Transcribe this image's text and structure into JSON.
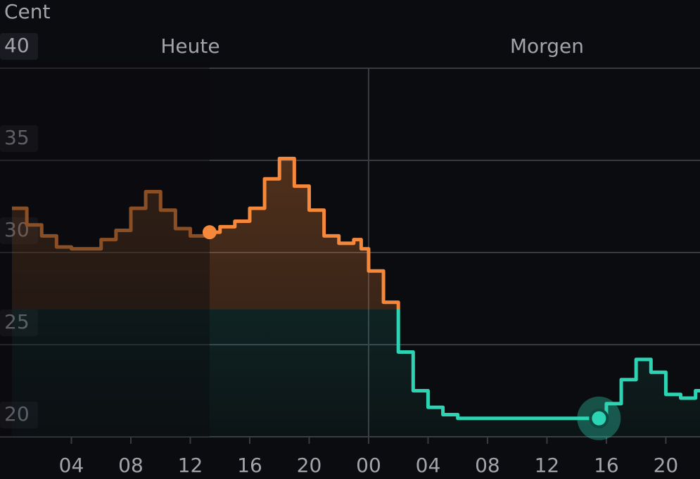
{
  "chart_data": {
    "type": "line",
    "y_label": "Cent",
    "day_labels": [
      "Heute",
      "Morgen"
    ],
    "x": [
      0,
      1,
      2,
      3,
      4,
      5,
      6,
      7,
      8,
      9,
      10,
      11,
      12,
      13,
      14,
      15,
      16,
      17,
      18,
      19,
      20,
      21,
      22,
      23,
      23.5,
      24,
      25,
      26,
      27,
      28,
      29,
      30,
      31,
      32,
      33,
      34,
      35,
      36,
      37,
      38,
      39,
      39.5,
      40,
      41,
      42,
      43,
      44,
      45,
      46
    ],
    "values": [
      32.4,
      31.5,
      30.9,
      30.3,
      30.2,
      30.2,
      30.7,
      31.2,
      32.4,
      33.3,
      32.3,
      31.3,
      30.9,
      31.1,
      31.4,
      31.7,
      32.4,
      34.0,
      35.1,
      33.6,
      32.3,
      30.9,
      30.5,
      30.7,
      30.2,
      29.0,
      27.3,
      24.6,
      22.5,
      21.6,
      21.2,
      21.0,
      21.0,
      21.0,
      21.0,
      21.0,
      21.0,
      21.0,
      21.0,
      21.0,
      21.0,
      21.0,
      21.8,
      23.1,
      24.2,
      23.5,
      22.3,
      22.1,
      22.5
    ],
    "color_high": "#f5883a",
    "color_low": "#2dd4b4",
    "color_threshold": 26.9,
    "now": {
      "x": 13.3,
      "value": 31.1
    },
    "minimum": {
      "x": 39.5,
      "value": 21.0
    },
    "xlim": [
      0,
      46.3
    ],
    "xticks": [
      {
        "value": 4,
        "label": "04"
      },
      {
        "value": 8,
        "label": "08"
      },
      {
        "value": 12,
        "label": "12"
      },
      {
        "value": 16,
        "label": "16"
      },
      {
        "value": 20,
        "label": "20"
      },
      {
        "value": 24,
        "label": "00"
      },
      {
        "value": 28,
        "label": "04"
      },
      {
        "value": 32,
        "label": "08"
      },
      {
        "value": 36,
        "label": "12"
      },
      {
        "value": 40,
        "label": "16"
      },
      {
        "value": 44,
        "label": "20"
      }
    ],
    "ylim": [
      20,
      40
    ],
    "yticks": [
      20,
      25,
      30,
      35,
      40
    ],
    "grid": true
  }
}
